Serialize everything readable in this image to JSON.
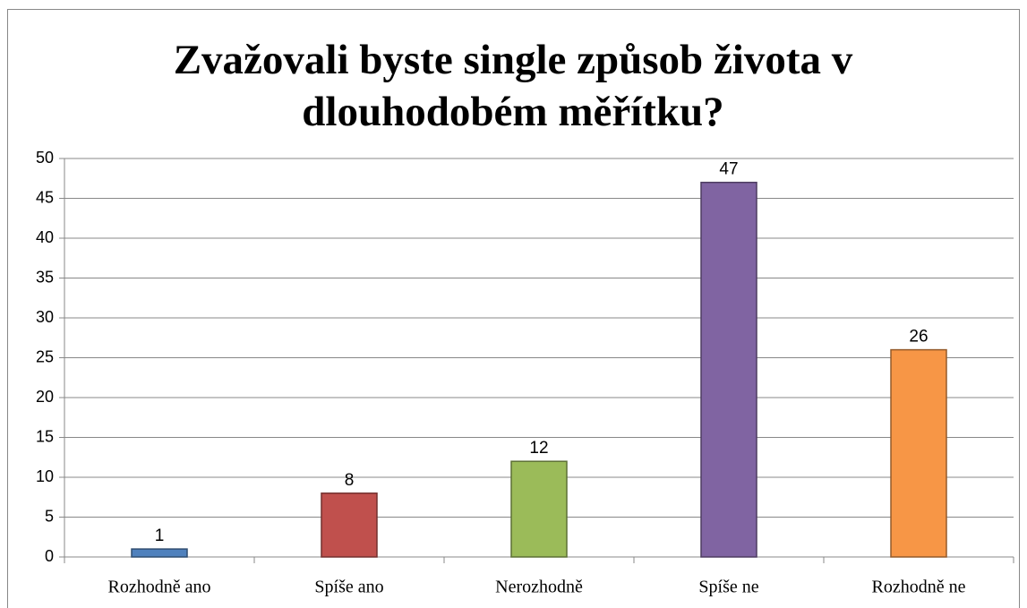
{
  "chart_data": {
    "type": "bar",
    "title": "Zvažovali byste single způsob života v dlouhodobém měřítku?",
    "categories": [
      "Rozhodně ano",
      "Spíše ano",
      "Nerozhodně",
      "Spíše ne",
      "Rozhodně ne"
    ],
    "values": [
      1,
      8,
      12,
      47,
      26
    ],
    "colors": [
      "#4f81bd",
      "#c0504d",
      "#9bbb59",
      "#8064a2",
      "#f79646"
    ],
    "ylim": [
      0,
      50
    ],
    "yticks": [
      0,
      5,
      10,
      15,
      20,
      25,
      30,
      35,
      40,
      45,
      50
    ],
    "grid": true
  }
}
